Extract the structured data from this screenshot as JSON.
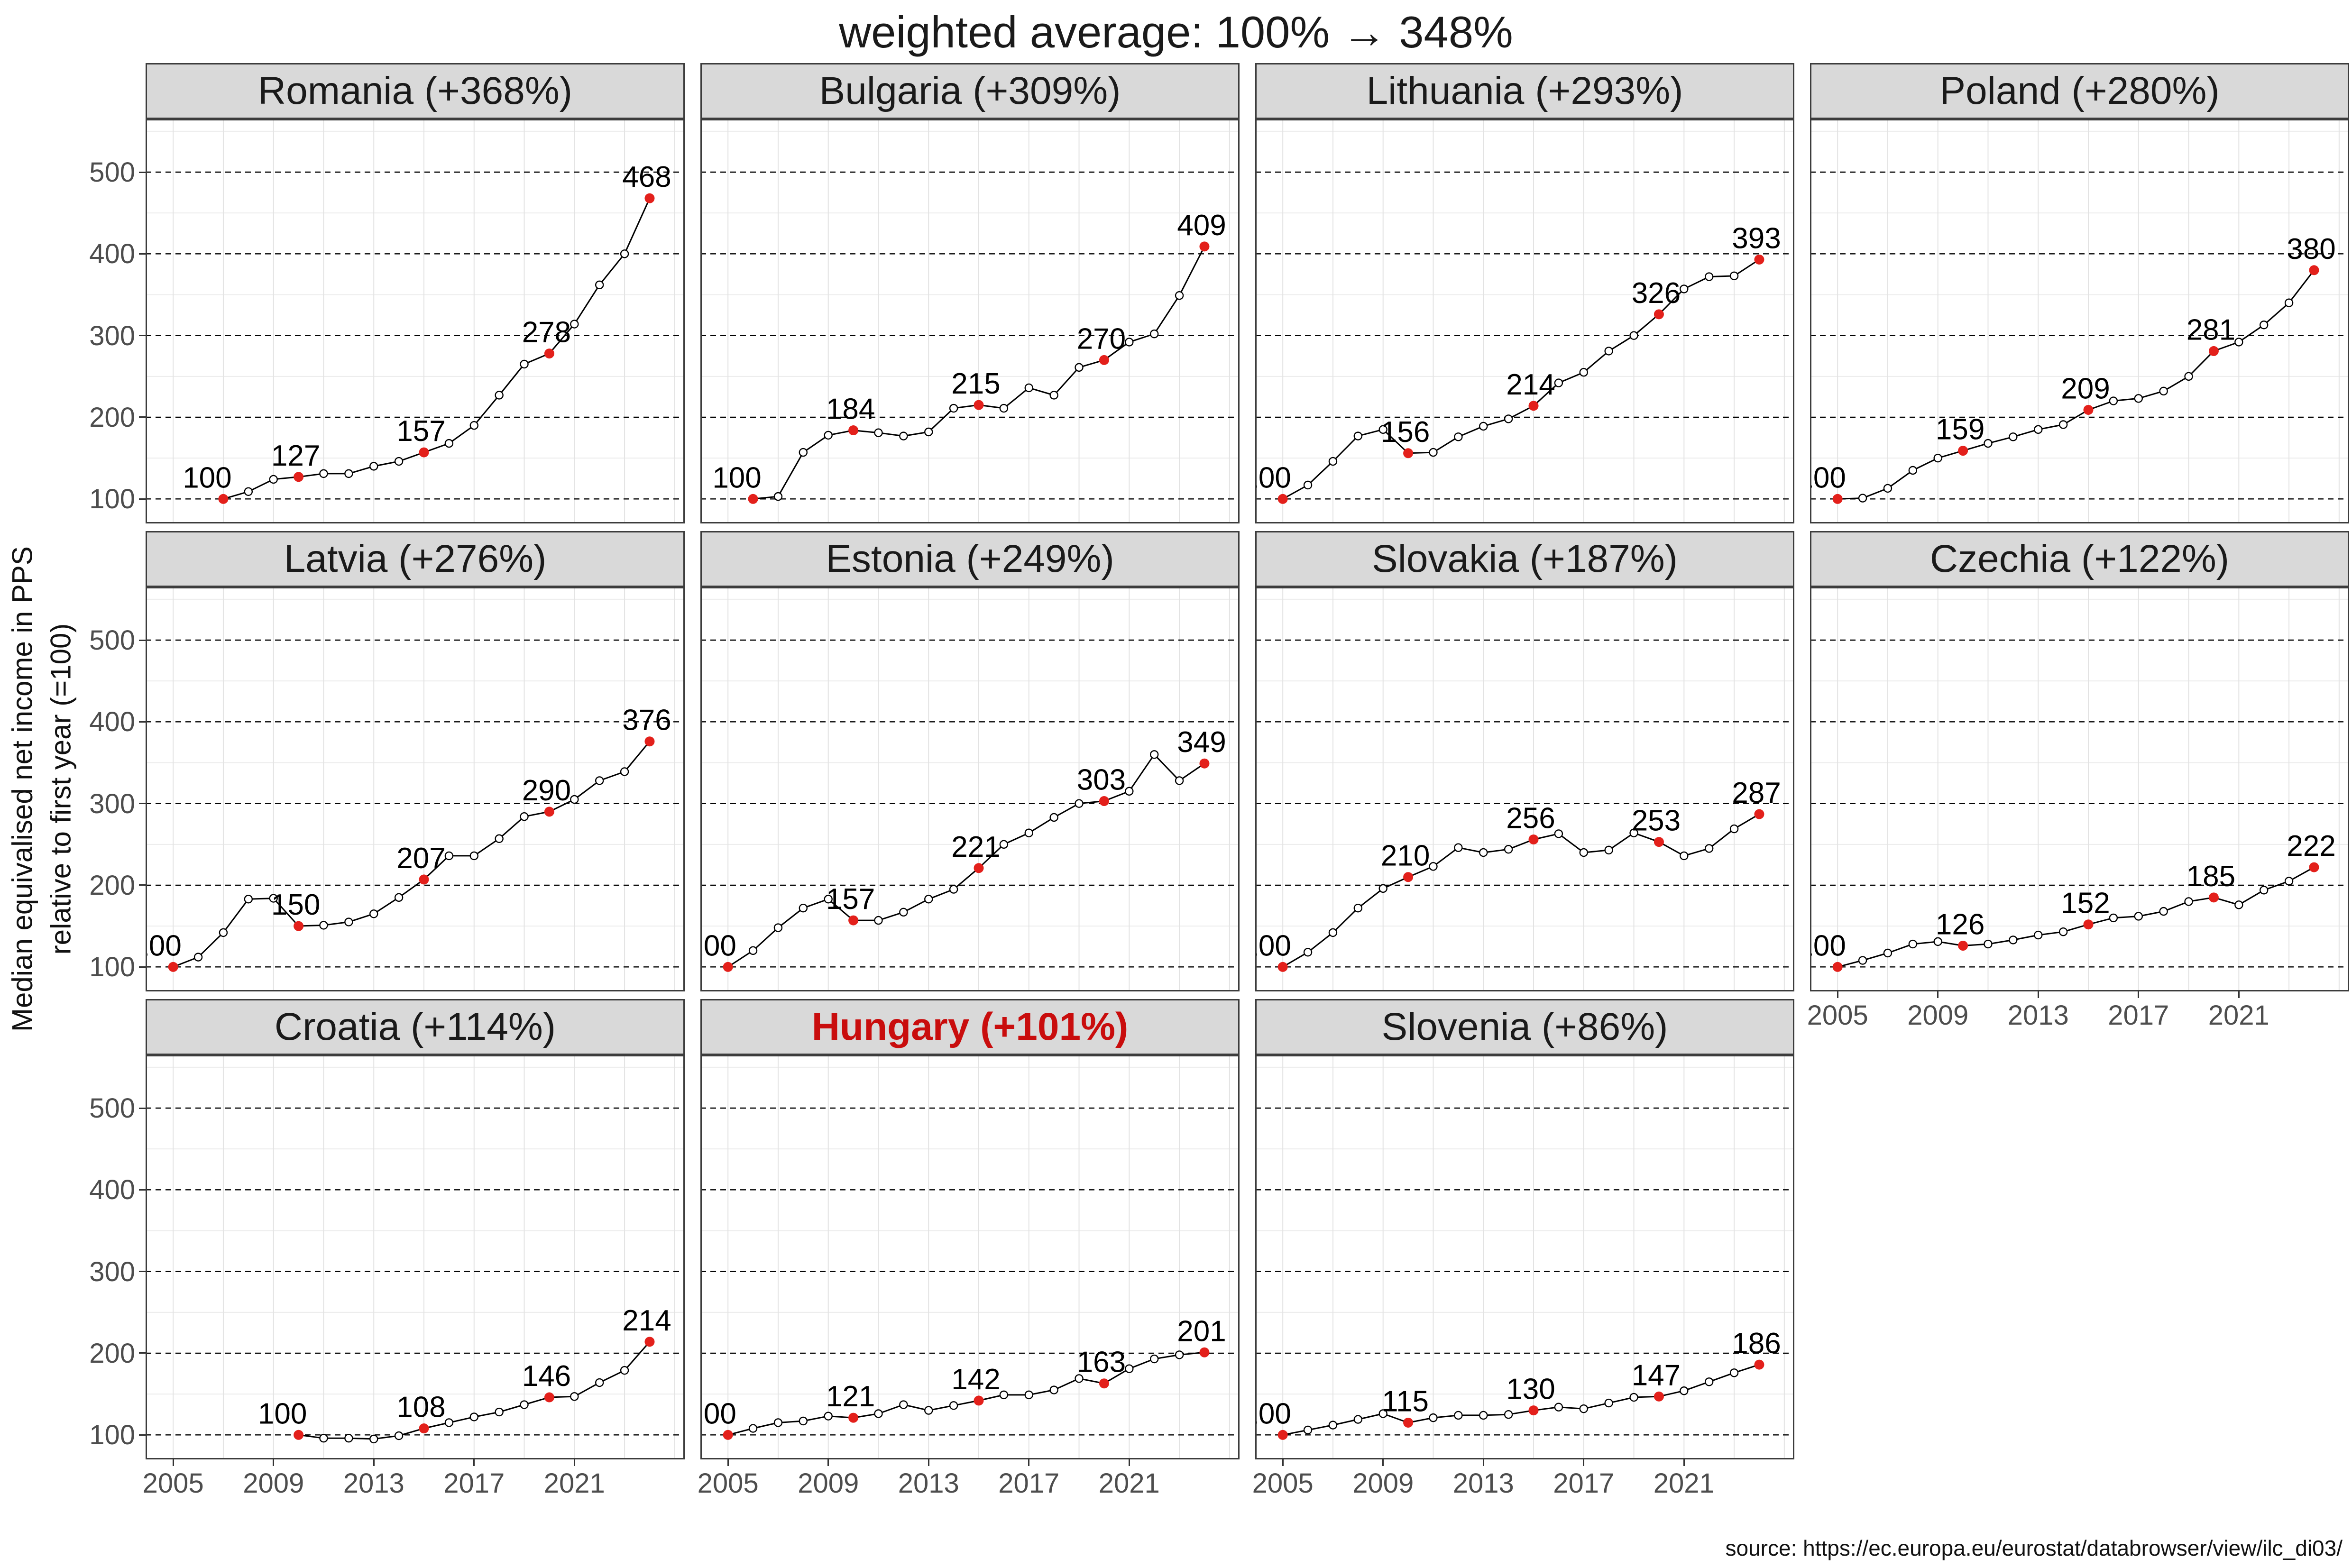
{
  "page": {
    "title": "weighted average: 100% → 348%",
    "y_axis_label_line1": "Median equivalised net income in PPS",
    "y_axis_label_line2": "relative to first year (=100)",
    "source": "source: https://ec.europa.eu/eurostat/databrowser/view/ilc_di03/"
  },
  "chart_data": {
    "type": "line",
    "title": "weighted average: 100% → 348%",
    "ylabel": "Median equivalised net income in PPS relative to first year (=100)",
    "x_ticks": [
      2005,
      2009,
      2013,
      2017,
      2021
    ],
    "y_ticks": [
      100,
      200,
      300,
      400,
      500
    ],
    "x_minor_grid_years": [
      2005,
      2007,
      2009,
      2011,
      2013,
      2015,
      2017,
      2019,
      2021,
      2023,
      2025
    ],
    "y_minor_grid_values": [
      150,
      250,
      350,
      450,
      550
    ],
    "x_domain": [
      2003.9,
      2025.4
    ],
    "y_domain": [
      70,
      565
    ],
    "colors": {
      "line": "#000000",
      "point_stroke": "#000000",
      "point_fill": "#ffffff",
      "highlight_point": "#e3201b",
      "hungary_title": "#c90d0d",
      "strip_bg": "#d9d9d9",
      "grid_vertical": "#e3e3e3",
      "grid_minor_h": "#ececec",
      "major_dashed": "#000000",
      "axis_text": "#4d4d4d"
    },
    "panels": [
      {
        "name": "Romania",
        "label": "Romania (+368%)",
        "highlight": false,
        "row": 0,
        "col": 0,
        "show_xaxis": false,
        "start_year": 2007,
        "labeled_years": [
          2007,
          2010,
          2015,
          2020,
          2024
        ],
        "values": [
          100,
          109,
          124,
          127,
          131,
          131,
          140,
          146,
          157,
          168,
          190,
          227,
          265,
          278,
          314,
          362,
          400,
          468
        ]
      },
      {
        "name": "Bulgaria",
        "label": "Bulgaria (+309%)",
        "highlight": false,
        "row": 0,
        "col": 1,
        "show_xaxis": false,
        "start_year": 2006,
        "labeled_years": [
          2006,
          2010,
          2015,
          2020,
          2024
        ],
        "values": [
          100,
          103,
          157,
          178,
          184,
          181,
          177,
          182,
          211,
          215,
          211,
          236,
          227,
          261,
          270,
          292,
          302,
          349,
          409
        ]
      },
      {
        "name": "Lithuania",
        "label": "Lithuania (+293%)",
        "highlight": false,
        "row": 0,
        "col": 2,
        "show_xaxis": false,
        "start_year": 2005,
        "labeled_years": [
          2005,
          2010,
          2015,
          2020,
          2024
        ],
        "values": [
          100,
          117,
          146,
          177,
          185,
          156,
          157,
          176,
          189,
          198,
          214,
          242,
          255,
          281,
          300,
          326,
          357,
          372,
          373,
          393
        ]
      },
      {
        "name": "Poland",
        "label": "Poland (+280%)",
        "highlight": false,
        "row": 0,
        "col": 3,
        "show_xaxis": false,
        "start_year": 2005,
        "labeled_years": [
          2005,
          2010,
          2015,
          2020,
          2024
        ],
        "values": [
          100,
          101,
          113,
          135,
          150,
          159,
          168,
          176,
          185,
          191,
          209,
          220,
          223,
          232,
          250,
          281,
          292,
          313,
          340,
          380
        ]
      },
      {
        "name": "Latvia",
        "label": "Latvia (+276%)",
        "highlight": false,
        "row": 1,
        "col": 0,
        "show_xaxis": false,
        "start_year": 2005,
        "labeled_years": [
          2005,
          2010,
          2015,
          2020,
          2024
        ],
        "values": [
          100,
          112,
          142,
          183,
          184,
          150,
          151,
          155,
          165,
          185,
          207,
          236,
          236,
          257,
          284,
          290,
          305,
          328,
          339,
          376
        ]
      },
      {
        "name": "Estonia",
        "label": "Estonia (+249%)",
        "highlight": false,
        "row": 1,
        "col": 1,
        "show_xaxis": false,
        "start_year": 2005,
        "labeled_years": [
          2005,
          2010,
          2015,
          2020,
          2024
        ],
        "values": [
          100,
          120,
          148,
          172,
          183,
          157,
          157,
          167,
          183,
          195,
          221,
          250,
          264,
          283,
          300,
          303,
          315,
          360,
          328,
          349
        ]
      },
      {
        "name": "Slovakia",
        "label": "Slovakia (+187%)",
        "highlight": false,
        "row": 1,
        "col": 2,
        "show_xaxis": false,
        "start_year": 2005,
        "labeled_years": [
          2005,
          2010,
          2015,
          2020,
          2024
        ],
        "values": [
          100,
          118,
          142,
          172,
          196,
          210,
          223,
          246,
          240,
          244,
          256,
          263,
          240,
          243,
          264,
          253,
          236,
          245,
          269,
          287
        ]
      },
      {
        "name": "Czechia",
        "label": "Czechia (+122%)",
        "highlight": false,
        "row": 1,
        "col": 3,
        "show_xaxis": true,
        "start_year": 2005,
        "labeled_years": [
          2005,
          2010,
          2015,
          2020,
          2024
        ],
        "values": [
          100,
          108,
          117,
          128,
          131,
          126,
          128,
          133,
          139,
          143,
          152,
          160,
          162,
          168,
          180,
          185,
          176,
          194,
          205,
          222
        ]
      },
      {
        "name": "Croatia",
        "label": "Croatia (+114%)",
        "highlight": false,
        "row": 2,
        "col": 0,
        "show_xaxis": true,
        "start_year": 2010,
        "labeled_years": [
          2010,
          2015,
          2020,
          2024
        ],
        "values": [
          100,
          96,
          96,
          95,
          99,
          108,
          115,
          122,
          128,
          137,
          146,
          147,
          164,
          179,
          214
        ]
      },
      {
        "name": "Hungary",
        "label": "Hungary (+101%)",
        "highlight": true,
        "row": 2,
        "col": 1,
        "show_xaxis": true,
        "start_year": 2005,
        "labeled_years": [
          2005,
          2010,
          2015,
          2020,
          2024
        ],
        "values": [
          100,
          108,
          115,
          117,
          123,
          121,
          126,
          137,
          130,
          136,
          142,
          149,
          149,
          155,
          169,
          163,
          181,
          193,
          198,
          201
        ]
      },
      {
        "name": "Slovenia",
        "label": "Slovenia (+86%)",
        "highlight": false,
        "row": 2,
        "col": 2,
        "show_xaxis": true,
        "start_year": 2005,
        "labeled_years": [
          2005,
          2010,
          2015,
          2020,
          2024
        ],
        "values": [
          100,
          106,
          112,
          119,
          126,
          115,
          121,
          124,
          124,
          125,
          130,
          134,
          132,
          139,
          146,
          147,
          154,
          165,
          176,
          186
        ]
      }
    ]
  }
}
